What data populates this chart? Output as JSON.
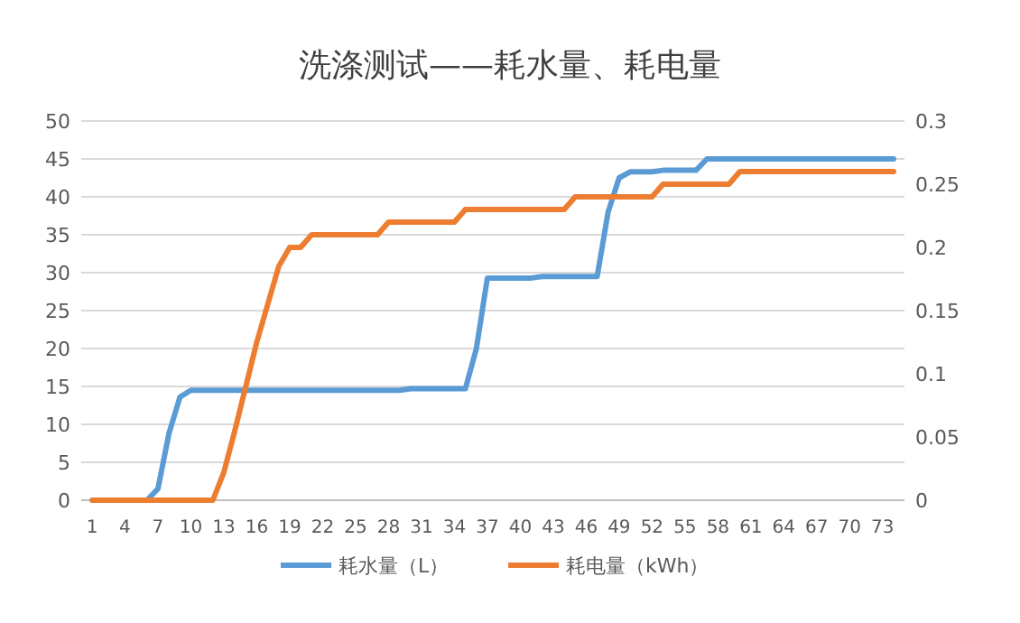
{
  "chart_data": {
    "type": "line",
    "title": "洗涤测试——耗水量、耗电量",
    "categories": [
      "1",
      null,
      null,
      "4",
      null,
      null,
      "7",
      null,
      null,
      "10",
      null,
      null,
      "13",
      null,
      null,
      "16",
      null,
      null,
      "19",
      null,
      null,
      "22",
      null,
      null,
      "25",
      null,
      null,
      "28",
      null,
      null,
      "31",
      null,
      null,
      "34",
      null,
      null,
      "37",
      null,
      null,
      "40",
      null,
      null,
      "43",
      null,
      null,
      "46",
      null,
      null,
      "49",
      null,
      null,
      "52",
      null,
      null,
      "55",
      null,
      null,
      "58",
      null,
      null,
      "61",
      null,
      null,
      "64",
      null,
      null,
      "67",
      null,
      null,
      "70",
      null,
      null,
      "73",
      null
    ],
    "series": [
      {
        "name": "耗水量（L）",
        "color": "#5b9bd5",
        "values": [
          null,
          null,
          null,
          0,
          0,
          0,
          1.5,
          8.8,
          13.6,
          14.5,
          14.5,
          14.5,
          14.5,
          14.5,
          14.5,
          14.5,
          14.5,
          14.5,
          14.5,
          14.5,
          14.5,
          14.5,
          14.5,
          14.5,
          14.5,
          14.5,
          14.5,
          14.5,
          14.5,
          14.7,
          14.7,
          14.7,
          14.7,
          14.7,
          14.7,
          20,
          29.3,
          29.3,
          29.3,
          29.3,
          29.3,
          29.5,
          29.5,
          29.5,
          29.5,
          29.5,
          29.5,
          38,
          42.5,
          43.3,
          43.3,
          43.3,
          43.5,
          43.5,
          43.5,
          43.5,
          45,
          45,
          45,
          45,
          45,
          45,
          45,
          45,
          45,
          45,
          45,
          45,
          45,
          45,
          45,
          45,
          45,
          45
        ]
      },
      {
        "name": "耗电量（kWh）",
        "color": "#ed7d31",
        "axis": "y2",
        "values": [
          0,
          0,
          0,
          0,
          0,
          0,
          0,
          0,
          0,
          0,
          0,
          0,
          0.022,
          0.055,
          0.09,
          0.125,
          0.155,
          0.185,
          0.2,
          0.2,
          0.21,
          0.21,
          0.21,
          0.21,
          0.21,
          0.21,
          0.21,
          0.22,
          0.22,
          0.22,
          0.22,
          0.22,
          0.22,
          0.22,
          0.23,
          0.23,
          0.23,
          0.23,
          0.23,
          0.23,
          0.23,
          0.23,
          0.23,
          0.23,
          0.24,
          0.24,
          0.24,
          0.24,
          0.24,
          0.24,
          0.24,
          0.24,
          0.25,
          0.25,
          0.25,
          0.25,
          0.25,
          0.25,
          0.25,
          0.26,
          0.26,
          0.26,
          0.26,
          0.26,
          0.26,
          0.26,
          0.26,
          0.26,
          0.26,
          0.26,
          0.26,
          0.26,
          0.26,
          0.26
        ]
      }
    ],
    "ylim": [
      0,
      50
    ],
    "yticks": [
      0,
      5,
      10,
      15,
      20,
      25,
      30,
      35,
      40,
      45,
      50
    ],
    "y2lim": [
      0,
      0.3
    ],
    "y2ticks": [
      0,
      0.05,
      0.1,
      0.15,
      0.2,
      0.25,
      0.3
    ],
    "grid": "y",
    "legend": "bottom"
  }
}
